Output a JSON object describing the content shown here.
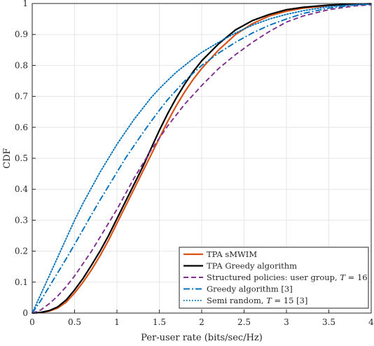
{
  "chart_data": {
    "type": "line",
    "title": "",
    "xlabel": "Per-user rate (bits/sec/Hz)",
    "ylabel": "CDF",
    "xlim": [
      0,
      4
    ],
    "ylim": [
      0,
      1
    ],
    "x_ticks": [
      "0",
      "0.5",
      "1",
      "1.5",
      "2",
      "2.5",
      "3",
      "3.5",
      "4"
    ],
    "y_ticks": [
      "0",
      "0.1",
      "0.2",
      "0.3",
      "0.4",
      "0.5",
      "0.6",
      "0.7",
      "0.8",
      "0.9",
      "1"
    ],
    "grid": true,
    "legend_position": "bottom-right",
    "series": [
      {
        "name": "TPA sMWIM",
        "color": "#d95319",
        "style": "solid",
        "width": 2.2,
        "x": [
          0,
          0.1,
          0.2,
          0.3,
          0.4,
          0.5,
          0.6,
          0.7,
          0.8,
          0.9,
          1.0,
          1.1,
          1.2,
          1.3,
          1.4,
          1.5,
          1.6,
          1.7,
          1.8,
          1.9,
          2.0,
          2.2,
          2.4,
          2.6,
          2.8,
          3.0,
          3.2,
          3.5,
          3.8,
          4.0
        ],
        "y": [
          0,
          0.002,
          0.006,
          0.016,
          0.035,
          0.065,
          0.1,
          0.14,
          0.185,
          0.235,
          0.29,
          0.345,
          0.4,
          0.455,
          0.51,
          0.565,
          0.62,
          0.67,
          0.715,
          0.755,
          0.79,
          0.85,
          0.9,
          0.935,
          0.96,
          0.975,
          0.985,
          0.993,
          0.997,
          0.999
        ]
      },
      {
        "name": "TPA Greedy algorithm",
        "color": "#000000",
        "style": "solid",
        "width": 2.2,
        "x": [
          0,
          0.1,
          0.2,
          0.3,
          0.4,
          0.5,
          0.6,
          0.7,
          0.8,
          0.9,
          1.0,
          1.1,
          1.2,
          1.3,
          1.4,
          1.5,
          1.6,
          1.7,
          1.8,
          1.9,
          2.0,
          2.2,
          2.4,
          2.6,
          2.8,
          3.0,
          3.2,
          3.5,
          3.8,
          4.0
        ],
        "y": [
          0,
          0.002,
          0.008,
          0.02,
          0.042,
          0.075,
          0.112,
          0.155,
          0.2,
          0.25,
          0.305,
          0.36,
          0.415,
          0.47,
          0.53,
          0.59,
          0.645,
          0.695,
          0.74,
          0.78,
          0.815,
          0.87,
          0.915,
          0.945,
          0.965,
          0.98,
          0.988,
          0.995,
          0.998,
          0.999
        ]
      },
      {
        "name": "Structured policies: user group, T = 16",
        "color": "#7e2f8e",
        "style": "dashed",
        "width": 1.9,
        "x": [
          0,
          0.1,
          0.2,
          0.3,
          0.4,
          0.5,
          0.6,
          0.7,
          0.8,
          0.9,
          1.0,
          1.1,
          1.2,
          1.3,
          1.4,
          1.5,
          1.6,
          1.7,
          1.8,
          1.9,
          2.0,
          2.2,
          2.4,
          2.6,
          2.8,
          3.0,
          3.2,
          3.5,
          3.8,
          4.0
        ],
        "y": [
          0,
          0.01,
          0.03,
          0.055,
          0.085,
          0.12,
          0.16,
          0.2,
          0.245,
          0.29,
          0.335,
          0.385,
          0.435,
          0.48,
          0.525,
          0.565,
          0.605,
          0.64,
          0.675,
          0.705,
          0.735,
          0.79,
          0.835,
          0.875,
          0.91,
          0.94,
          0.96,
          0.98,
          0.992,
          0.996
        ]
      },
      {
        "name": "Greedy algorithm [3]",
        "color": "#0072bd",
        "style": "dashdot",
        "width": 1.9,
        "x": [
          0,
          0.1,
          0.2,
          0.3,
          0.4,
          0.5,
          0.6,
          0.7,
          0.8,
          0.9,
          1.0,
          1.1,
          1.2,
          1.3,
          1.4,
          1.5,
          1.6,
          1.7,
          1.8,
          1.9,
          2.0,
          2.2,
          2.4,
          2.6,
          2.8,
          3.0,
          3.2,
          3.5,
          3.8,
          4.0
        ],
        "y": [
          0,
          0.04,
          0.085,
          0.13,
          0.175,
          0.222,
          0.27,
          0.318,
          0.365,
          0.41,
          0.455,
          0.5,
          0.54,
          0.58,
          0.618,
          0.655,
          0.69,
          0.72,
          0.75,
          0.775,
          0.8,
          0.84,
          0.875,
          0.905,
          0.93,
          0.95,
          0.968,
          0.985,
          0.995,
          0.998
        ]
      },
      {
        "name": "Semi random, T = 15 [3]",
        "color": "#0072bd",
        "style": "dotted",
        "width": 1.9,
        "x": [
          0,
          0.1,
          0.2,
          0.3,
          0.4,
          0.5,
          0.6,
          0.7,
          0.8,
          0.9,
          1.0,
          1.1,
          1.2,
          1.3,
          1.4,
          1.5,
          1.6,
          1.7,
          1.8,
          1.9,
          2.0,
          2.2,
          2.4,
          2.6,
          2.8,
          3.0,
          3.2,
          3.5,
          3.8,
          4.0
        ],
        "y": [
          0,
          0.06,
          0.12,
          0.18,
          0.24,
          0.3,
          0.355,
          0.405,
          0.455,
          0.5,
          0.545,
          0.585,
          0.625,
          0.66,
          0.695,
          0.725,
          0.752,
          0.778,
          0.8,
          0.822,
          0.842,
          0.875,
          0.905,
          0.93,
          0.95,
          0.965,
          0.977,
          0.99,
          0.996,
          0.999
        ]
      }
    ]
  },
  "legend": {
    "items": [
      {
        "pre": "TPA sMWIM",
        "var": "",
        "post": ""
      },
      {
        "pre": "TPA Greedy algorithm",
        "var": "",
        "post": ""
      },
      {
        "pre": "Structured policies: user group, ",
        "var": "T",
        "post": " = 16"
      },
      {
        "pre": "Greedy algorithm [3]",
        "var": "",
        "post": ""
      },
      {
        "pre": "Semi random, ",
        "var": "T",
        "post": " = 15 [3]"
      }
    ]
  }
}
